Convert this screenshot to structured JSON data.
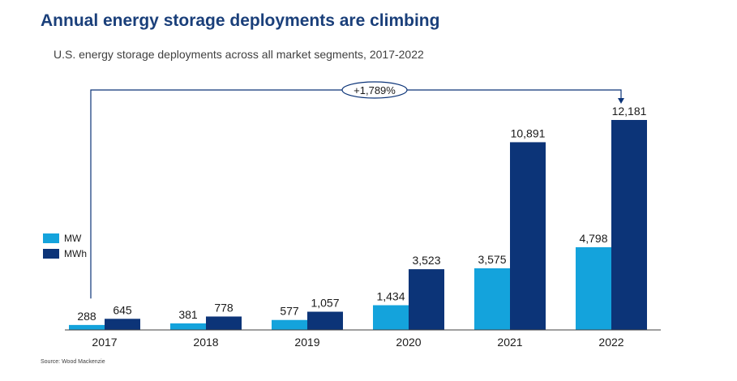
{
  "title": "Annual energy storage deployments are climbing",
  "subtitle": "U.S. energy storage deployments across all market segments, 2017-2022",
  "source": "Source: Wood Mackenzie",
  "colors": {
    "mw": "#14a3dc",
    "mwh": "#0c3478",
    "text": "#1a1a1a",
    "axis": "#404040"
  },
  "chart_data": {
    "type": "bar",
    "categories": [
      "2017",
      "2018",
      "2019",
      "2020",
      "2021",
      "2022"
    ],
    "series": [
      {
        "name": "MW",
        "values": [
          288,
          381,
          577,
          1434,
          3575,
          4798
        ],
        "labels": [
          "288",
          "381",
          "577",
          "1,434",
          "3,575",
          "4,798"
        ]
      },
      {
        "name": "MWh",
        "values": [
          645,
          778,
          1057,
          3523,
          10891,
          12181
        ],
        "labels": [
          "645",
          "778",
          "1,057",
          "3,523",
          "10,891",
          "12,181"
        ]
      }
    ],
    "legend_position": "left",
    "annotation": {
      "text": "+1,789%",
      "from": "2017 MWh",
      "to": "2022 MWh"
    },
    "xlabel": "",
    "ylabel": "",
    "ylim": [
      0,
      12181
    ],
    "grid": false
  }
}
